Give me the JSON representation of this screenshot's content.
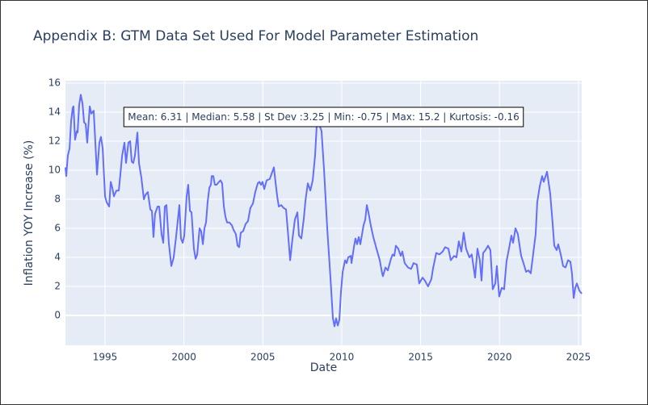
{
  "chart_data": {
    "type": "line",
    "title": "Appendix B: GTM Data Set Used For Model Parameter Estimation",
    "x_label": "Date",
    "y_label": "Inflation YOY Increase (%)",
    "annotation": "Mean: 6.31 | Median: 5.58 | St Dev :3.25 | Min: -0.75 | Max: 15.2 | Kurtosis: -0.16",
    "color": "#636efa",
    "grid": true,
    "xlim": [
      1992.49,
      2025.21
    ],
    "xticks": [
      1995,
      2000,
      2005,
      2010,
      2015,
      2020,
      2025
    ],
    "ylim": [
      -2.06,
      16.17
    ],
    "yticks": [
      0,
      2,
      4,
      6,
      8,
      10,
      12,
      14,
      16
    ],
    "x": [
      1992.49,
      1992.54,
      1992.64,
      1992.75,
      1992.85,
      1992.95,
      1993.0,
      1993.1,
      1993.21,
      1993.26,
      1993.36,
      1993.46,
      1993.57,
      1993.67,
      1993.77,
      1993.87,
      1993.98,
      1994.03,
      1994.13,
      1994.28,
      1994.38,
      1994.49,
      1994.64,
      1994.74,
      1994.85,
      1995.0,
      1995.1,
      1995.26,
      1995.36,
      1995.46,
      1995.56,
      1995.72,
      1995.87,
      1995.97,
      1996.08,
      1996.23,
      1996.33,
      1996.48,
      1996.59,
      1996.69,
      1996.79,
      1996.89,
      1997.05,
      1997.15,
      1997.3,
      1997.46,
      1997.56,
      1997.71,
      1997.87,
      1997.97,
      1998.07,
      1998.17,
      1998.33,
      1998.43,
      1998.58,
      1998.69,
      1998.79,
      1998.89,
      1999.04,
      1999.2,
      1999.35,
      1999.51,
      1999.71,
      1999.81,
      1999.92,
      2000.02,
      2000.17,
      2000.27,
      2000.38,
      2000.48,
      2000.63,
      2000.74,
      2000.84,
      2000.99,
      2001.09,
      2001.2,
      2001.3,
      2001.4,
      2001.5,
      2001.61,
      2001.71,
      2001.76,
      2001.86,
      2001.96,
      2002.07,
      2002.22,
      2002.32,
      2002.42,
      2002.53,
      2002.63,
      2002.73,
      2002.88,
      2003.04,
      2003.14,
      2003.29,
      2003.4,
      2003.5,
      2003.6,
      2003.75,
      2003.91,
      2004.06,
      2004.21,
      2004.37,
      2004.52,
      2004.68,
      2004.78,
      2004.88,
      2004.98,
      2005.09,
      2005.24,
      2005.44,
      2005.7,
      2005.8,
      2005.91,
      2006.01,
      2006.16,
      2006.32,
      2006.47,
      2006.57,
      2006.73,
      2006.88,
      2007.03,
      2007.19,
      2007.29,
      2007.44,
      2007.6,
      2007.7,
      2007.85,
      2008.01,
      2008.16,
      2008.31,
      2008.42,
      2008.62,
      2008.72,
      2008.88,
      2009.08,
      2009.29,
      2009.44,
      2009.54,
      2009.64,
      2009.75,
      2009.85,
      2009.95,
      2010.06,
      2010.21,
      2010.31,
      2010.41,
      2010.57,
      2010.62,
      2010.77,
      2010.87,
      2010.97,
      2011.08,
      2011.18,
      2011.38,
      2011.49,
      2011.59,
      2011.69,
      2011.84,
      2012.0,
      2012.2,
      2012.41,
      2012.56,
      2012.61,
      2012.77,
      2012.92,
      2013.12,
      2013.23,
      2013.33,
      2013.43,
      2013.58,
      2013.74,
      2013.84,
      2013.99,
      2014.2,
      2014.4,
      2014.55,
      2014.76,
      2014.91,
      2015.12,
      2015.27,
      2015.47,
      2015.68,
      2015.78,
      2015.99,
      2016.19,
      2016.4,
      2016.55,
      2016.76,
      2016.91,
      2017.12,
      2017.27,
      2017.42,
      2017.58,
      2017.73,
      2017.88,
      2018.09,
      2018.24,
      2018.45,
      2018.6,
      2018.75,
      2018.86,
      2018.96,
      2019.11,
      2019.27,
      2019.42,
      2019.57,
      2019.73,
      2019.83,
      2019.98,
      2020.14,
      2020.29,
      2020.44,
      2020.6,
      2020.75,
      2020.86,
      2021.01,
      2021.16,
      2021.37,
      2021.52,
      2021.68,
      2021.83,
      2021.98,
      2022.14,
      2022.29,
      2022.39,
      2022.55,
      2022.7,
      2022.8,
      2023.01,
      2023.21,
      2023.36,
      2023.47,
      2023.62,
      2023.72,
      2023.88,
      2024.03,
      2024.18,
      2024.34,
      2024.49,
      2024.59,
      2024.7,
      2024.8,
      2024.9,
      2025.06,
      2025.21
    ],
    "values": [
      10.2,
      9.6,
      11.0,
      11.5,
      13.4,
      14.3,
      14.4,
      12.1,
      12.7,
      12.6,
      14.5,
      15.2,
      14.6,
      13.3,
      13.2,
      11.9,
      13.6,
      14.4,
      13.9,
      14.1,
      12.0,
      9.7,
      11.9,
      12.3,
      11.5,
      8.2,
      7.8,
      7.5,
      9.2,
      8.8,
      8.2,
      8.6,
      8.6,
      9.7,
      11.0,
      11.9,
      10.5,
      11.9,
      12.0,
      10.6,
      10.5,
      11.0,
      12.6,
      10.5,
      9.5,
      8.0,
      8.3,
      8.5,
      7.3,
      7.2,
      5.4,
      7.0,
      7.5,
      7.5,
      5.6,
      5.0,
      7.5,
      7.6,
      5.0,
      3.4,
      4.0,
      5.5,
      7.6,
      5.3,
      5.0,
      5.5,
      8.2,
      9.0,
      7.2,
      7.1,
      4.6,
      3.9,
      4.2,
      6.0,
      5.8,
      4.9,
      6.0,
      6.4,
      7.8,
      8.8,
      9.0,
      9.6,
      9.6,
      9.0,
      9.0,
      9.2,
      9.3,
      9.1,
      7.5,
      6.8,
      6.4,
      6.4,
      6.2,
      5.9,
      5.6,
      4.8,
      4.7,
      5.7,
      5.8,
      6.3,
      6.5,
      7.4,
      7.7,
      8.5,
      9.1,
      9.2,
      9.0,
      9.2,
      8.7,
      9.3,
      9.4,
      10.2,
      9.2,
      8.2,
      7.5,
      7.6,
      7.4,
      7.3,
      6.0,
      3.8,
      5.3,
      6.6,
      7.1,
      5.5,
      5.3,
      6.7,
      7.9,
      9.1,
      8.6,
      9.3,
      11.0,
      13.2,
      13.0,
      12.7,
      10.0,
      6.0,
      2.5,
      -0.2,
      -0.75,
      -0.2,
      -0.7,
      -0.3,
      1.6,
      3.0,
      3.8,
      3.6,
      4.0,
      4.1,
      3.6,
      4.7,
      5.3,
      4.9,
      5.4,
      4.9,
      6.2,
      6.6,
      7.6,
      7.1,
      6.2,
      5.4,
      4.6,
      3.8,
      2.9,
      2.7,
      3.3,
      3.1,
      3.9,
      4.2,
      4.1,
      4.8,
      4.6,
      4.1,
      4.4,
      3.6,
      3.3,
      3.2,
      3.6,
      3.5,
      2.2,
      2.6,
      2.4,
      2.0,
      2.5,
      3.2,
      4.3,
      4.2,
      4.4,
      4.7,
      4.6,
      3.8,
      4.1,
      4.0,
      5.1,
      4.4,
      5.7,
      4.6,
      4.0,
      4.2,
      2.6,
      4.6,
      3.8,
      2.4,
      4.3,
      4.5,
      4.8,
      4.5,
      1.8,
      2.2,
      3.4,
      1.3,
      1.9,
      1.8,
      3.7,
      4.6,
      5.5,
      5.0,
      6.0,
      5.6,
      4.1,
      3.6,
      3.0,
      3.1,
      2.9,
      4.3,
      5.6,
      7.8,
      8.9,
      9.6,
      9.2,
      9.9,
      8.4,
      6.4,
      4.8,
      4.5,
      4.9,
      4.2,
      3.4,
      3.3,
      3.8,
      3.7,
      2.9,
      1.2,
      1.9,
      2.2,
      1.7,
      1.5
    ]
  }
}
